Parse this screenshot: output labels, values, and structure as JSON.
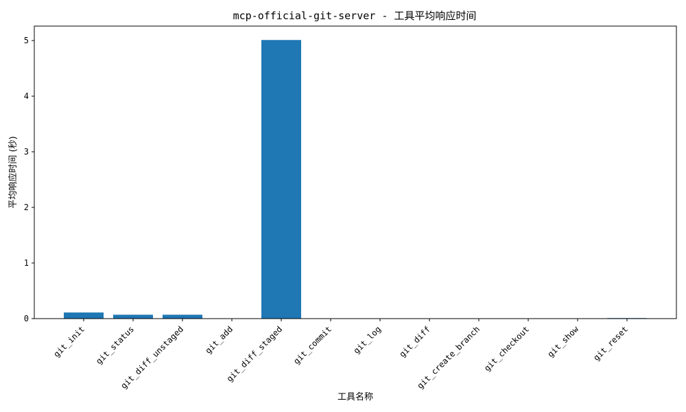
{
  "chart_data": {
    "type": "bar",
    "title": "mcp-official-git-server - 工具平均响应时间",
    "xlabel": "工具名称",
    "ylabel": "平均响应时间 (秒)",
    "categories": [
      "git_init",
      "git_status",
      "git_diff_unstaged",
      "git_add",
      "git_diff_staged",
      "git_commit",
      "git_log",
      "git_diff",
      "git_create_branch",
      "git_checkout",
      "git_show",
      "git_reset"
    ],
    "values": [
      0.11,
      0.07,
      0.07,
      0.0,
      5.01,
      0.0,
      0.0,
      0.0,
      0.0,
      0.0,
      0.0,
      0.01
    ],
    "ylim": [
      0,
      5.26
    ],
    "yticks": [
      0,
      1,
      2,
      3,
      4,
      5
    ],
    "bar_color": "#1f77b4",
    "grid": false,
    "legend": "none"
  }
}
